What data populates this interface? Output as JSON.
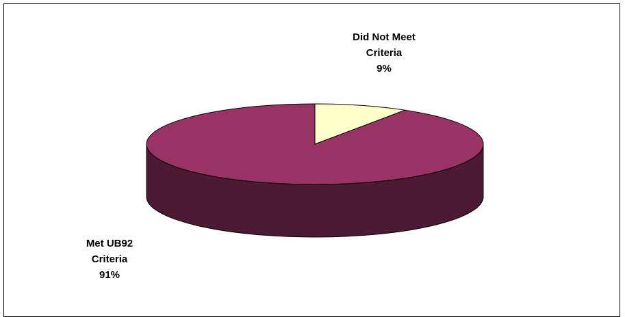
{
  "chart_data": {
    "type": "pie",
    "style": "3d",
    "slices": [
      {
        "label_lines": [
          "Did Not Meet",
          "Criteria"
        ],
        "percent_label": "9%",
        "value": 9,
        "color": "#ffffcc",
        "side_color": "#e6e6b8"
      },
      {
        "label_lines": [
          "Met UB92",
          "Criteria"
        ],
        "percent_label": "91%",
        "value": 91,
        "color": "#993366",
        "side_color": "#4d1a33"
      }
    ],
    "legend": "none",
    "title": ""
  }
}
